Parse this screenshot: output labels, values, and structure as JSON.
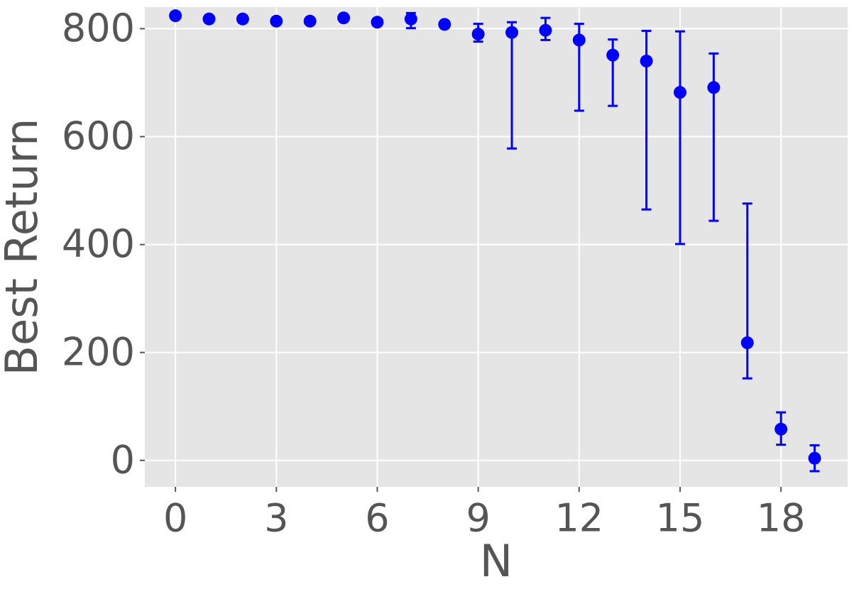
{
  "chart_data": {
    "type": "scatter",
    "x_label": "N",
    "y_label": "Best Return",
    "x": [
      0,
      1,
      2,
      3,
      4,
      5,
      6,
      7,
      8,
      9,
      10,
      11,
      12,
      13,
      14,
      15,
      16,
      17,
      18,
      19
    ],
    "series": [
      {
        "color": "#0000ff",
        "values": [
          824,
          818,
          818,
          814,
          814,
          820,
          812,
          818,
          808,
          790,
          793,
          797,
          779,
          751,
          740,
          682,
          691,
          218,
          58,
          4
        ],
        "lower": [
          821,
          815,
          812,
          811,
          811,
          817,
          809,
          801,
          805,
          776,
          578,
          779,
          648,
          657,
          465,
          401,
          444,
          152,
          29,
          -20
        ],
        "upper": [
          827,
          821,
          822,
          817,
          817,
          823,
          815,
          829,
          811,
          809,
          812,
          820,
          809,
          780,
          796,
          795,
          754,
          476,
          89,
          28
        ]
      }
    ],
    "xlim": [
      -0.91,
      19.98
    ],
    "ylim": [
      -49,
      840
    ],
    "xticks": [
      0,
      3,
      6,
      9,
      12,
      15,
      18
    ],
    "yticks": [
      0,
      200,
      400,
      600,
      800
    ],
    "grid": true
  }
}
